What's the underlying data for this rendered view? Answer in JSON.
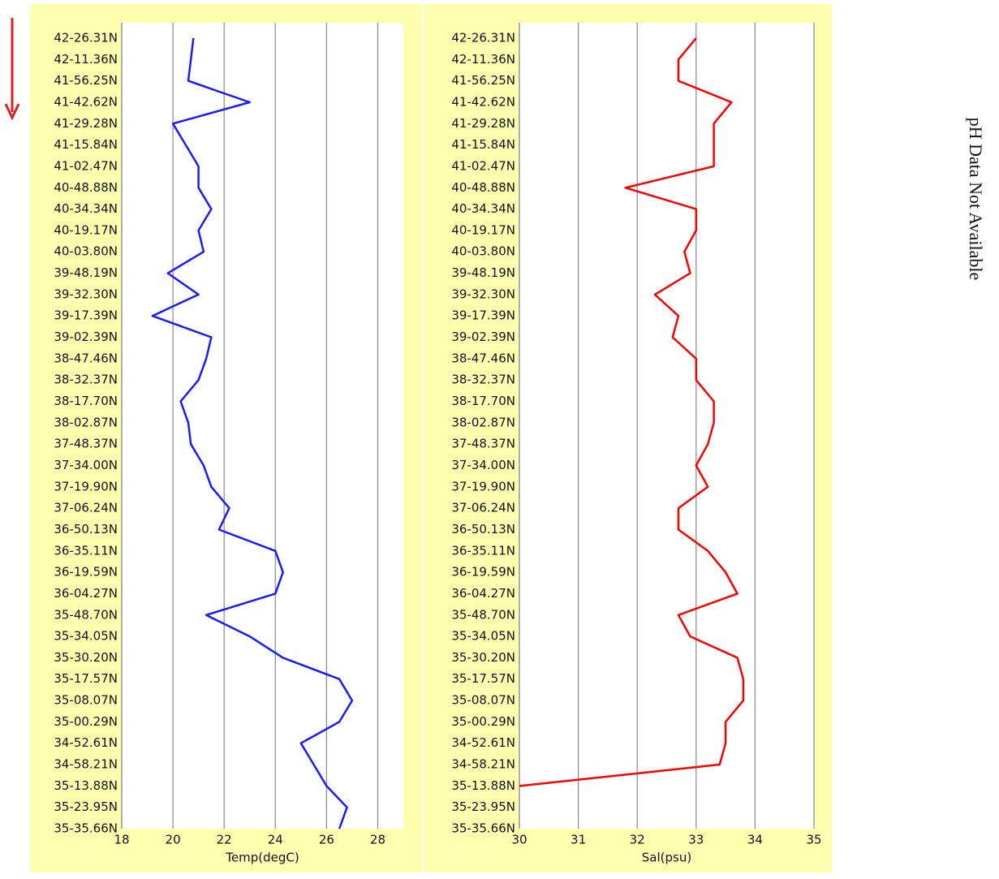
{
  "chart_data": [
    {
      "type": "line",
      "x_label": "Temp(degC)",
      "color": "#1a1aff",
      "grid": true,
      "categories": [
        "42-26.31N",
        "42-11.36N",
        "41-56.25N",
        "41-42.62N",
        "41-29.28N",
        "41-15.84N",
        "41-02.47N",
        "40-48.88N",
        "40-34.34N",
        "40-19.17N",
        "40-03.80N",
        "39-48.19N",
        "39-32.30N",
        "39-17.39N",
        "39-02.39N",
        "38-47.46N",
        "38-32.37N",
        "38-17.70N",
        "38-02.87N",
        "37-48.37N",
        "37-34.00N",
        "37-19.90N",
        "37-06.24N",
        "36-50.13N",
        "36-35.11N",
        "36-19.59N",
        "36-04.27N",
        "35-48.70N",
        "35-34.05N",
        "35-30.20N",
        "35-17.57N",
        "35-08.07N",
        "35-00.29N",
        "34-52.61N",
        "34-58.21N",
        "35-13.88N",
        "35-23.95N",
        "35-35.66N"
      ],
      "values": [
        20.8,
        20.7,
        20.6,
        23.0,
        20.0,
        20.5,
        21.0,
        21.0,
        21.5,
        21.0,
        21.2,
        19.8,
        21.0,
        19.2,
        21.5,
        21.3,
        21.0,
        20.3,
        20.6,
        20.7,
        21.2,
        21.5,
        22.2,
        21.8,
        24.0,
        24.3,
        24.0,
        21.3,
        23.0,
        24.3,
        26.5,
        27.0,
        26.5,
        25.0,
        25.5,
        26.0,
        26.8,
        26.5
      ],
      "xlim": [
        18,
        29
      ],
      "xticks": [
        18,
        20,
        22,
        24,
        26,
        28
      ]
    },
    {
      "type": "line",
      "x_label": "Sal(psu)",
      "color": "#ff0000",
      "grid": true,
      "categories": [
        "42-26.31N",
        "42-11.36N",
        "41-56.25N",
        "41-42.62N",
        "41-29.28N",
        "41-15.84N",
        "41-02.47N",
        "40-48.88N",
        "40-34.34N",
        "40-19.17N",
        "40-03.80N",
        "39-48.19N",
        "39-32.30N",
        "39-17.39N",
        "39-02.39N",
        "38-47.46N",
        "38-32.37N",
        "38-17.70N",
        "38-02.87N",
        "37-48.37N",
        "37-34.00N",
        "37-19.90N",
        "37-06.24N",
        "36-50.13N",
        "36-35.11N",
        "36-19.59N",
        "36-04.27N",
        "35-48.70N",
        "35-34.05N",
        "35-30.20N",
        "35-17.57N",
        "35-08.07N",
        "35-00.29N",
        "34-52.61N",
        "34-58.21N",
        "35-13.88N",
        "35-23.95N",
        "35-35.66N"
      ],
      "values": [
        33.0,
        32.7,
        32.7,
        33.6,
        33.3,
        33.3,
        33.3,
        31.8,
        33.0,
        33.0,
        32.8,
        32.9,
        32.3,
        32.7,
        32.6,
        33.0,
        33.0,
        33.3,
        33.3,
        33.2,
        33.0,
        33.2,
        32.7,
        32.7,
        33.2,
        33.5,
        33.7,
        32.7,
        32.9,
        33.7,
        33.8,
        33.8,
        33.5,
        33.5,
        33.4,
        30.0,
        null,
        null
      ],
      "xlim": [
        30,
        35
      ],
      "xticks": [
        30,
        31,
        32,
        33,
        34,
        35
      ]
    }
  ],
  "side_text": "pH Data Not Available"
}
